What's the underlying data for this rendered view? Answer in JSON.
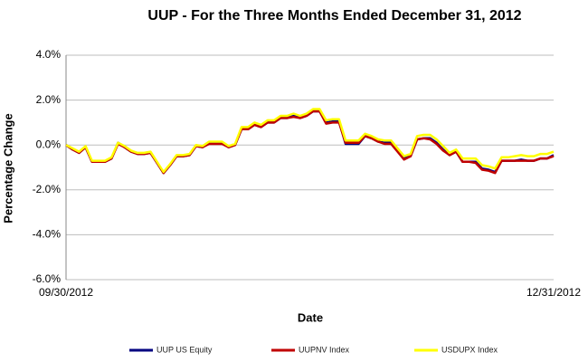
{
  "chart_data": {
    "type": "line",
    "title": "UUP - For the Three Months Ended December 31, 2012",
    "x_label": "Date",
    "y_label": "Percentage Change",
    "categories": [
      "09/30/2012",
      null,
      null,
      null,
      null,
      null,
      null,
      null,
      null,
      null,
      null,
      null,
      null,
      null,
      null,
      null,
      null,
      null,
      null,
      null,
      null,
      null,
      null,
      null,
      null,
      null,
      null,
      null,
      null,
      null,
      null,
      null,
      null,
      null,
      null,
      null,
      null,
      null,
      null,
      null,
      null,
      null,
      null,
      null,
      null,
      null,
      null,
      null,
      null,
      null,
      null,
      null,
      null,
      null,
      null,
      null,
      null,
      null,
      null,
      null,
      null,
      null,
      null,
      null,
      null,
      null,
      null,
      null,
      null,
      null,
      null,
      null,
      null,
      null,
      null,
      "12/31/2012"
    ],
    "series": [
      {
        "name": "UUP US Equity",
        "color": "#000080",
        "values": [
          0,
          -0.2,
          -0.35,
          -0.1,
          -0.75,
          -0.75,
          -0.75,
          -0.6,
          0.1,
          -0.1,
          -0.3,
          -0.4,
          -0.4,
          -0.35,
          -0.8,
          -1.25,
          -0.9,
          -0.5,
          -0.5,
          -0.45,
          -0.05,
          -0.1,
          0.1,
          0.1,
          0.1,
          -0.1,
          0,
          0.7,
          0.7,
          0.9,
          0.8,
          1.0,
          1.0,
          1.2,
          1.2,
          1.3,
          1.2,
          1.3,
          1.5,
          1.5,
          1.0,
          1.05,
          1.05,
          0.05,
          0.05,
          0.05,
          0.4,
          0.3,
          0.15,
          0.1,
          0.1,
          -0.25,
          -0.6,
          -0.5,
          0.25,
          0.3,
          0.3,
          0.1,
          -0.2,
          -0.45,
          -0.3,
          -0.75,
          -0.75,
          -0.75,
          -1.05,
          -1.1,
          -1.2,
          -0.7,
          -0.7,
          -0.7,
          -0.65,
          -0.7,
          -0.7,
          -0.6,
          -0.6,
          -0.45
        ]
      },
      {
        "name": "UUPNV Index",
        "color": "#c00000",
        "values": [
          0,
          -0.2,
          -0.35,
          -0.1,
          -0.75,
          -0.75,
          -0.75,
          -0.6,
          0.05,
          -0.1,
          -0.3,
          -0.4,
          -0.4,
          -0.35,
          -0.8,
          -1.25,
          -0.9,
          -0.5,
          -0.5,
          -0.45,
          -0.05,
          -0.1,
          0.05,
          0.05,
          0.05,
          -0.1,
          0,
          0.7,
          0.7,
          0.9,
          0.8,
          1.0,
          1.0,
          1.2,
          1.2,
          1.25,
          1.2,
          1.3,
          1.5,
          1.5,
          0.95,
          1.0,
          1.0,
          0.1,
          0.1,
          0.1,
          0.4,
          0.3,
          0.15,
          0.05,
          0.05,
          -0.3,
          -0.65,
          -0.5,
          0.25,
          0.3,
          0.25,
          0.05,
          -0.25,
          -0.45,
          -0.3,
          -0.75,
          -0.75,
          -0.8,
          -1.1,
          -1.15,
          -1.25,
          -0.7,
          -0.7,
          -0.7,
          -0.7,
          -0.7,
          -0.7,
          -0.6,
          -0.6,
          -0.5
        ]
      },
      {
        "name": "USDUPX Index",
        "color": "#ffff00",
        "values": [
          0,
          -0.15,
          -0.3,
          -0.05,
          -0.7,
          -0.7,
          -0.7,
          -0.55,
          0.1,
          -0.05,
          -0.25,
          -0.35,
          -0.35,
          -0.3,
          -0.75,
          -1.2,
          -0.85,
          -0.45,
          -0.45,
          -0.4,
          0,
          -0.05,
          0.15,
          0.15,
          0.15,
          -0.05,
          0.05,
          0.8,
          0.8,
          1.0,
          0.9,
          1.1,
          1.1,
          1.3,
          1.3,
          1.4,
          1.3,
          1.4,
          1.6,
          1.6,
          1.1,
          1.15,
          1.15,
          0.2,
          0.2,
          0.2,
          0.5,
          0.4,
          0.25,
          0.2,
          0.2,
          -0.15,
          -0.5,
          -0.4,
          0.4,
          0.45,
          0.45,
          0.25,
          -0.05,
          -0.35,
          -0.2,
          -0.6,
          -0.6,
          -0.6,
          -0.9,
          -0.95,
          -1.05,
          -0.55,
          -0.55,
          -0.5,
          -0.45,
          -0.5,
          -0.5,
          -0.4,
          -0.4,
          -0.3
        ]
      }
    ],
    "ylim": [
      -6,
      4
    ],
    "yticks": [
      {
        "value": -6,
        "label": "-6.0%"
      },
      {
        "value": -4,
        "label": "-4.0%"
      },
      {
        "value": -2,
        "label": "-2.0%"
      },
      {
        "value": 0,
        "label": "0.0%"
      },
      {
        "value": 2,
        "label": "2.0%"
      },
      {
        "value": 4,
        "label": "4.0%"
      }
    ],
    "grid": true,
    "legend": "bottom"
  }
}
